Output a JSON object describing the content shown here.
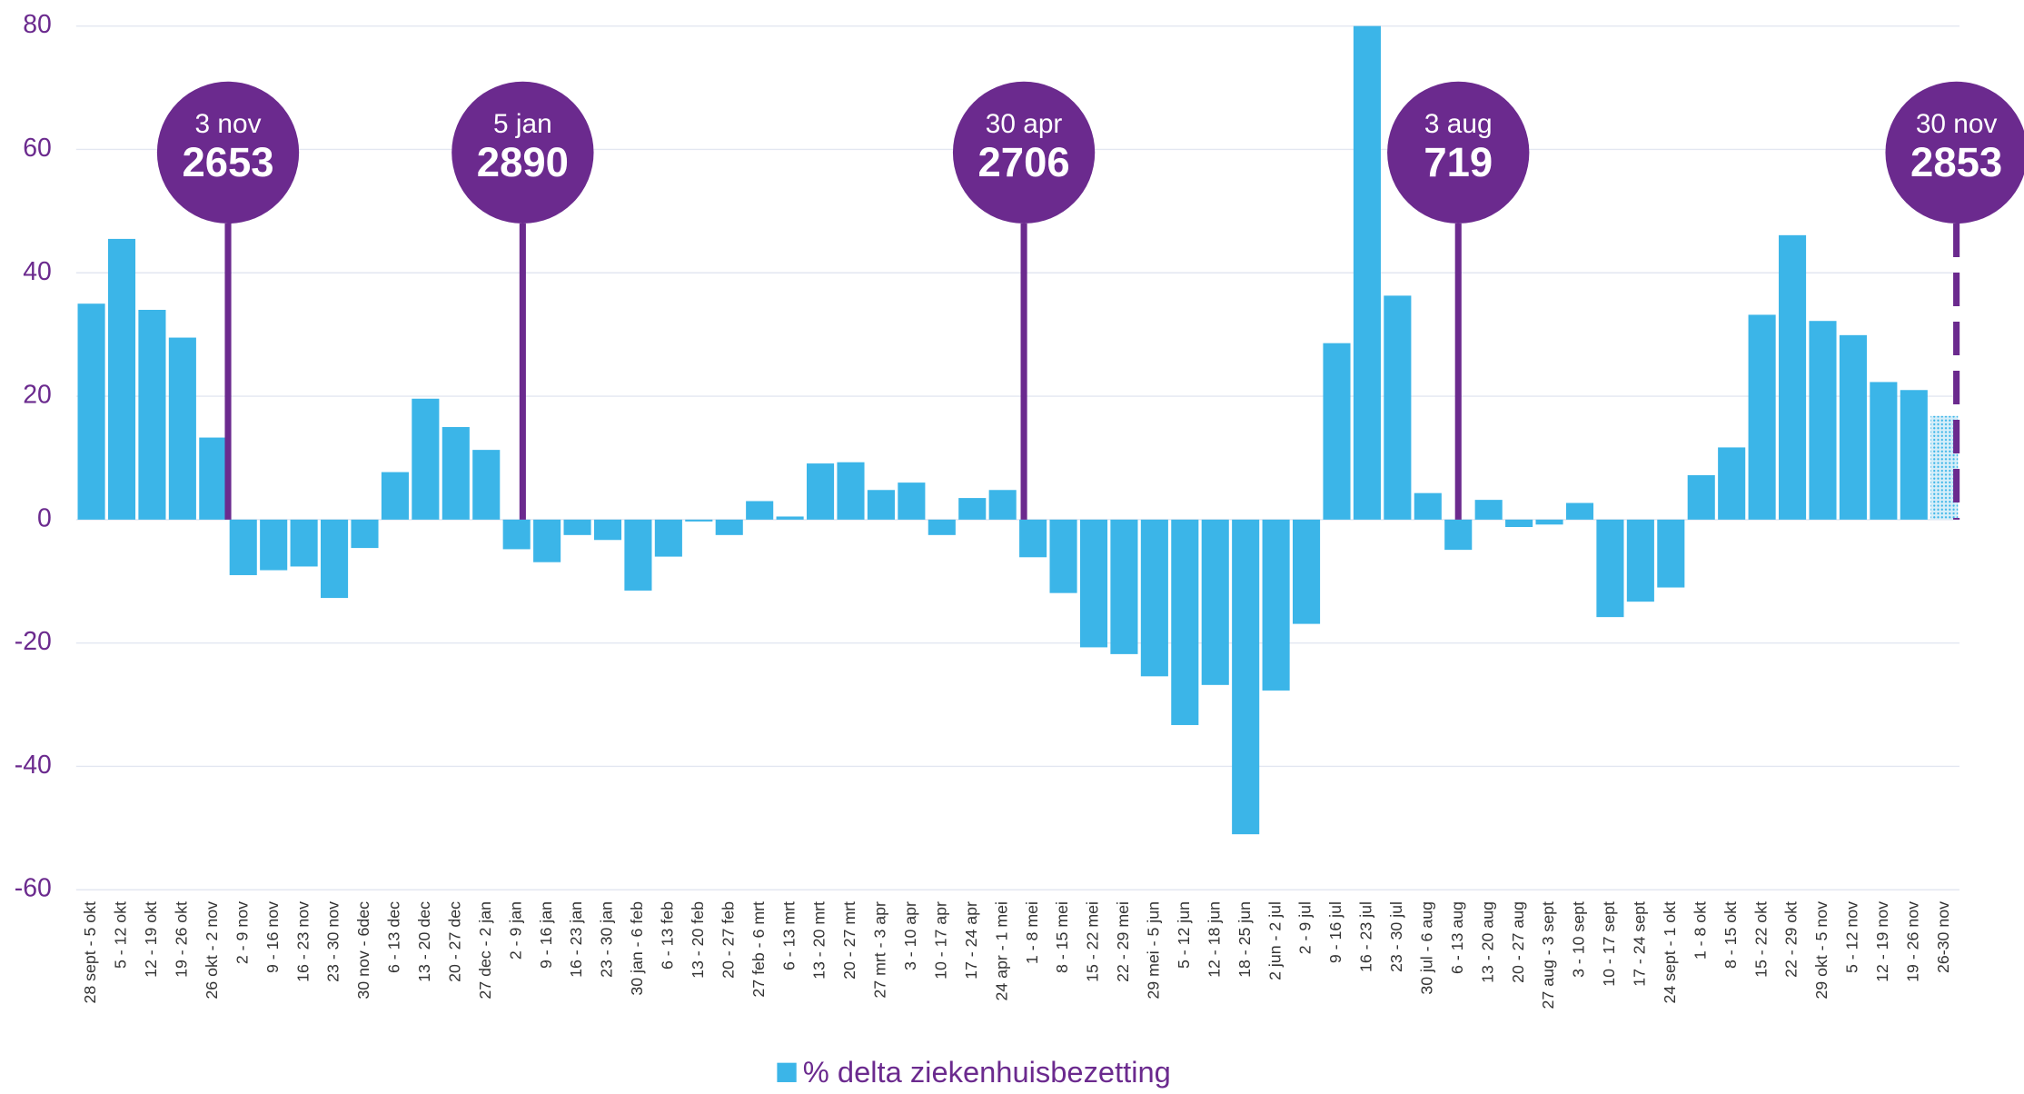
{
  "chart_data": {
    "type": "bar",
    "categories": [
      "28 sept - 5 okt",
      "5 - 12 okt",
      "12 - 19 okt",
      "19 - 26 okt",
      "26 okt - 2 nov",
      "2 - 9 nov",
      "9 - 16 nov",
      "16 - 23 nov",
      "23 - 30 nov",
      "30 nov - 6dec",
      "6 - 13 dec",
      "13 - 20 dec",
      "20 - 27 dec",
      "27 dec - 2 jan",
      "2 - 9 jan",
      "9 - 16 jan",
      "16 - 23 jan",
      "23 - 30 jan",
      "30 jan - 6 feb",
      "6 - 13 feb",
      "13 - 20 feb",
      "20 - 27 feb",
      "27 feb - 6 mrt",
      "6 - 13 mrt",
      "13 - 20 mrt",
      "20 - 27 mrt",
      "27 mrt - 3 apr",
      "3 - 10 apr",
      "10 - 17 apr",
      "17 - 24 apr",
      "24 apr - 1 mei",
      "1 - 8 mei",
      "8 - 15 mei",
      "15 - 22 mei",
      "22 - 29 mei",
      "29 mei - 5 jun",
      "5 - 12 jun",
      "12 - 18 jun",
      "18 - 25 jun",
      "2 jun - 2 jul",
      "2 - 9 jul",
      "9 - 16 jul",
      "16 - 23 jul",
      "23 - 30 jul",
      "30 jul - 6 aug",
      "6 - 13 aug",
      "13 - 20 aug",
      "20 - 27 aug",
      "27 aug - 3 sept",
      "3 - 10 sept",
      "10 - 17 sept",
      "17 - 24 sept",
      "24 sept - 1 okt",
      "1 - 8 okt",
      "8 - 15 okt",
      "15 - 22 okt",
      "22 - 29 okt",
      "29 okt - 5 nov",
      "5 - 12 nov",
      "12 - 19 nov",
      "19 - 26 nov",
      "26-30 nov"
    ],
    "series": [
      {
        "name": "% delta ziekenhuisbezetting",
        "color": "#3bb5e8",
        "values": [
          35,
          45.5,
          34,
          29.5,
          13.3,
          -9,
          -8.2,
          -7.6,
          -12.7,
          -4.6,
          7.7,
          19.6,
          15,
          11.3,
          -4.8,
          -6.9,
          -2.5,
          -3.3,
          -11.5,
          -6,
          -0.3,
          -2.5,
          3,
          0.5,
          9.1,
          9.3,
          4.8,
          6,
          -2.5,
          3.5,
          4.8,
          -6.1,
          -11.9,
          -20.7,
          -21.8,
          -25.4,
          -33.3,
          -26.8,
          -51,
          -27.7,
          -16.9,
          28.6,
          80,
          36.3,
          4.3,
          -4.9,
          3.2,
          -1.2,
          -0.8,
          2.7,
          -15.8,
          -13.3,
          -11,
          7.2,
          11.7,
          33.2,
          46.1,
          32.2,
          29.9,
          22.3,
          21,
          16.8
        ]
      }
    ],
    "partial_last": true,
    "ylim": [
      -60,
      80
    ],
    "yticks": [
      -60,
      -40,
      -20,
      0,
      20,
      40,
      60,
      80
    ],
    "grid": true,
    "annotations": [
      {
        "date": "3 nov",
        "value": "2653"
      },
      {
        "date": "5 jan",
        "value": "2890"
      },
      {
        "date": "30 apr",
        "value": "2706"
      },
      {
        "date": "3 aug",
        "value": "719"
      },
      {
        "date": "30 nov",
        "value": "2853"
      }
    ],
    "annotation_color": "#6b2a8e",
    "axis_text_color": "#6b2a8e"
  }
}
